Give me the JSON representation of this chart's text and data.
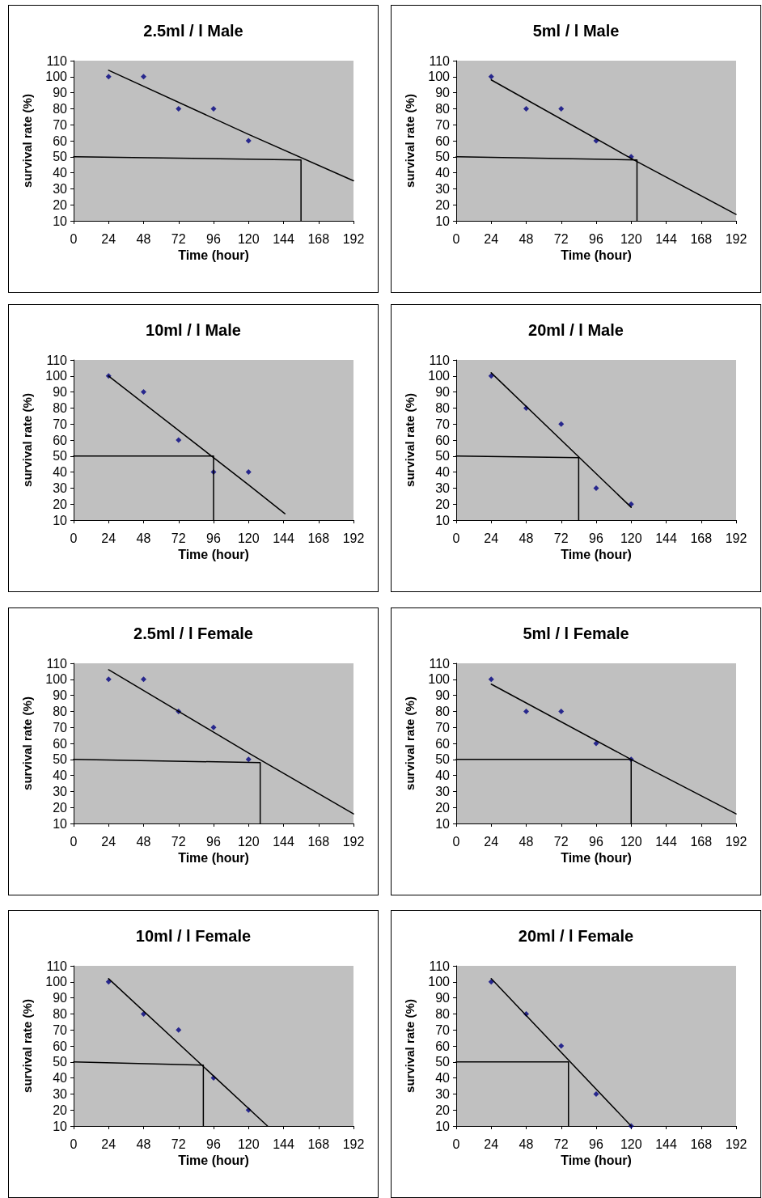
{
  "chart_data": [
    {
      "type": "scatter",
      "title": "2.5ml / l Male",
      "xlabel": "Time (hour)",
      "ylabel": "survival rate (%)",
      "xlim": [
        0,
        192
      ],
      "xticks": [
        0,
        24,
        48,
        72,
        96,
        120,
        144,
        168,
        192
      ],
      "ylim": [
        10,
        110
      ],
      "yticks": [
        10,
        20,
        30,
        40,
        50,
        60,
        70,
        80,
        90,
        100,
        110
      ],
      "grid": false,
      "series": [
        {
          "marker": "diamond",
          "color": "#000080",
          "x": [
            24,
            48,
            72,
            96,
            120
          ],
          "values": [
            100,
            100,
            80,
            80,
            60
          ]
        },
        {
          "type": "line",
          "marker": "none",
          "color": "#000000",
          "x": [
            24,
            120,
            192
          ],
          "values": [
            104,
            64,
            35
          ]
        },
        {
          "type": "line",
          "marker": "none",
          "color": "#000000",
          "x": [
            0,
            156,
            156
          ],
          "values": [
            50,
            48,
            10
          ]
        }
      ]
    },
    {
      "type": "scatter",
      "title": "5ml / l Male",
      "xlabel": "Time (hour)",
      "ylabel": "survival rate (%)",
      "xlim": [
        0,
        192
      ],
      "xticks": [
        0,
        24,
        48,
        72,
        96,
        120,
        144,
        168,
        192
      ],
      "ylim": [
        10,
        110
      ],
      "yticks": [
        10,
        20,
        30,
        40,
        50,
        60,
        70,
        80,
        90,
        100,
        110
      ],
      "grid": false,
      "series": [
        {
          "marker": "diamond",
          "color": "#000080",
          "x": [
            24,
            48,
            72,
            96,
            120
          ],
          "values": [
            100,
            80,
            80,
            60,
            50
          ]
        },
        {
          "type": "line",
          "marker": "none",
          "color": "#000000",
          "x": [
            24,
            120,
            192
          ],
          "values": [
            98,
            49,
            14
          ]
        },
        {
          "type": "line",
          "marker": "none",
          "color": "#000000",
          "x": [
            0,
            124,
            124
          ],
          "values": [
            50,
            48,
            10
          ]
        }
      ]
    },
    {
      "type": "scatter",
      "title": "10ml / l Male",
      "xlabel": "Time (hour)",
      "ylabel": "survival rate (%)",
      "xlim": [
        0,
        192
      ],
      "xticks": [
        0,
        24,
        48,
        72,
        96,
        120,
        144,
        168,
        192
      ],
      "ylim": [
        10,
        110
      ],
      "yticks": [
        10,
        20,
        30,
        40,
        50,
        60,
        70,
        80,
        90,
        100,
        110
      ],
      "grid": false,
      "series": [
        {
          "marker": "diamond",
          "color": "#000080",
          "x": [
            24,
            48,
            72,
            96,
            120
          ],
          "values": [
            100,
            90,
            60,
            40,
            40
          ]
        },
        {
          "type": "line",
          "marker": "none",
          "color": "#000000",
          "x": [
            24,
            120,
            145
          ],
          "values": [
            100,
            32,
            14
          ]
        },
        {
          "type": "line",
          "marker": "none",
          "color": "#000000",
          "x": [
            0,
            96,
            96
          ],
          "values": [
            50,
            50,
            10
          ]
        }
      ]
    },
    {
      "type": "scatter",
      "title": "20ml / l Male",
      "xlabel": "Time (hour)",
      "ylabel": "survival rate (%)",
      "xlim": [
        0,
        192
      ],
      "xticks": [
        0,
        24,
        48,
        72,
        96,
        120,
        144,
        168,
        192
      ],
      "ylim": [
        10,
        110
      ],
      "yticks": [
        10,
        20,
        30,
        40,
        50,
        60,
        70,
        80,
        90,
        100,
        110
      ],
      "grid": false,
      "series": [
        {
          "marker": "diamond",
          "color": "#000080",
          "x": [
            24,
            48,
            72,
            96,
            120
          ],
          "values": [
            100,
            80,
            70,
            30,
            20
          ]
        },
        {
          "type": "line",
          "marker": "none",
          "color": "#000000",
          "x": [
            24,
            120
          ],
          "values": [
            102,
            18
          ]
        },
        {
          "type": "line",
          "marker": "none",
          "color": "#000000",
          "x": [
            0,
            84,
            84
          ],
          "values": [
            50,
            49,
            10
          ]
        }
      ]
    },
    {
      "type": "scatter",
      "title": "2.5ml / l Female",
      "xlabel": "Time (hour)",
      "ylabel": "survival rate (%)",
      "xlim": [
        0,
        192
      ],
      "xticks": [
        0,
        24,
        48,
        72,
        96,
        120,
        144,
        168,
        192
      ],
      "ylim": [
        10,
        110
      ],
      "yticks": [
        10,
        20,
        30,
        40,
        50,
        60,
        70,
        80,
        90,
        100,
        110
      ],
      "grid": false,
      "series": [
        {
          "marker": "diamond",
          "color": "#000080",
          "x": [
            24,
            48,
            72,
            96,
            120
          ],
          "values": [
            100,
            100,
            80,
            70,
            50
          ]
        },
        {
          "type": "line",
          "marker": "none",
          "color": "#000000",
          "x": [
            24,
            120,
            192
          ],
          "values": [
            106,
            54,
            16
          ]
        },
        {
          "type": "line",
          "marker": "none",
          "color": "#000000",
          "x": [
            0,
            128,
            128
          ],
          "values": [
            50,
            48,
            10
          ]
        }
      ]
    },
    {
      "type": "scatter",
      "title": "5ml / l Female",
      "xlabel": "Time (hour)",
      "ylabel": "survival rate (%)",
      "xlim": [
        0,
        192
      ],
      "xticks": [
        0,
        24,
        48,
        72,
        96,
        120,
        144,
        168,
        192
      ],
      "ylim": [
        10,
        110
      ],
      "yticks": [
        10,
        20,
        30,
        40,
        50,
        60,
        70,
        80,
        90,
        100,
        110
      ],
      "grid": false,
      "series": [
        {
          "marker": "diamond",
          "color": "#000080",
          "x": [
            24,
            48,
            72,
            96,
            120
          ],
          "values": [
            100,
            80,
            80,
            60,
            50
          ]
        },
        {
          "type": "line",
          "marker": "none",
          "color": "#000000",
          "x": [
            24,
            120,
            192
          ],
          "values": [
            97,
            50,
            16
          ]
        },
        {
          "type": "line",
          "marker": "none",
          "color": "#000000",
          "x": [
            0,
            120,
            120
          ],
          "values": [
            50,
            50,
            10
          ]
        }
      ]
    },
    {
      "type": "scatter",
      "title": "10ml / l Female",
      "xlabel": "Time (hour)",
      "ylabel": "survival rate (%)",
      "xlim": [
        0,
        192
      ],
      "xticks": [
        0,
        24,
        48,
        72,
        96,
        120,
        144,
        168,
        192
      ],
      "ylim": [
        10,
        110
      ],
      "yticks": [
        10,
        20,
        30,
        40,
        50,
        60,
        70,
        80,
        90,
        100,
        110
      ],
      "grid": false,
      "series": [
        {
          "marker": "diamond",
          "color": "#000080",
          "x": [
            24,
            48,
            72,
            96,
            120
          ],
          "values": [
            100,
            80,
            70,
            40,
            20
          ]
        },
        {
          "type": "line",
          "marker": "none",
          "color": "#000000",
          "x": [
            24,
            133
          ],
          "values": [
            102,
            10
          ]
        },
        {
          "type": "line",
          "marker": "none",
          "color": "#000000",
          "x": [
            0,
            89,
            89
          ],
          "values": [
            50,
            48,
            10
          ]
        }
      ]
    },
    {
      "type": "scatter",
      "title": "20ml / l Female",
      "xlabel": "Time (hour)",
      "ylabel": "survival rate (%)",
      "xlim": [
        0,
        192
      ],
      "xticks": [
        0,
        24,
        48,
        72,
        96,
        120,
        144,
        168,
        192
      ],
      "ylim": [
        10,
        110
      ],
      "yticks": [
        10,
        20,
        30,
        40,
        50,
        60,
        70,
        80,
        90,
        100,
        110
      ],
      "grid": false,
      "series": [
        {
          "marker": "diamond",
          "color": "#000080",
          "x": [
            24,
            48,
            72,
            96,
            120
          ],
          "values": [
            100,
            80,
            60,
            30,
            10
          ]
        },
        {
          "type": "line",
          "marker": "none",
          "color": "#000000",
          "x": [
            24,
            120
          ],
          "values": [
            102,
            10
          ]
        },
        {
          "type": "line",
          "marker": "none",
          "color": "#000000",
          "x": [
            0,
            77,
            77
          ],
          "values": [
            50,
            50,
            10
          ]
        }
      ]
    }
  ]
}
